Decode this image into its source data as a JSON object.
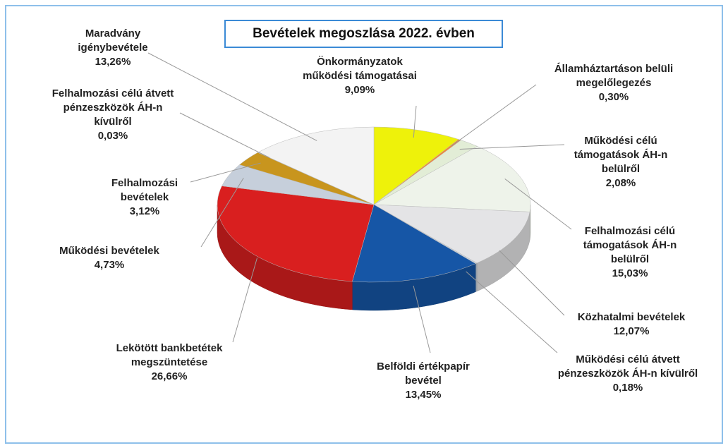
{
  "chart_data": {
    "type": "pie",
    "title": "Bevételek megoszlása 2022. évben",
    "categories": [
      "Önkormányzatok működési támogatásai",
      "Államháztartáson belüli megelőlegezés",
      "Működési célú támogatások ÁH-n belülről",
      "Felhalmozási célú támogatások ÁH-n belülről",
      "Közhatalmi bevételek",
      "Működési célú átvett pénzeszközök ÁH-n kívülről",
      "Belföldi értékpapír bevétel",
      "Lekötött bankbetétek megszüntetése",
      "Működési bevételek",
      "Felhalmozási bevételek",
      "Felhalmozási célú átvett pénzeszközök ÁH-n kívülről",
      "Maradvány igénybevétele"
    ],
    "values": [
      9.09,
      0.3,
      2.08,
      15.03,
      12.07,
      0.18,
      13.45,
      26.66,
      4.73,
      3.12,
      0.03,
      13.26
    ],
    "value_labels": [
      "9,09%",
      "0,30%",
      "2,08%",
      "15,03%",
      "12,07%",
      "0,18%",
      "13,45%",
      "26,66%",
      "4,73%",
      "3,12%",
      "0,03%",
      "13,26%"
    ],
    "colors": [
      "#eef20a",
      "#ee8a3a",
      "#e2edd6",
      "#eef3ea",
      "#e4e4e6",
      "#c9d3de",
      "#1656a6",
      "#d91f1f",
      "#c6cfdb",
      "#c8951e",
      "#4a4a58",
      "#f3f3f3"
    ]
  }
}
